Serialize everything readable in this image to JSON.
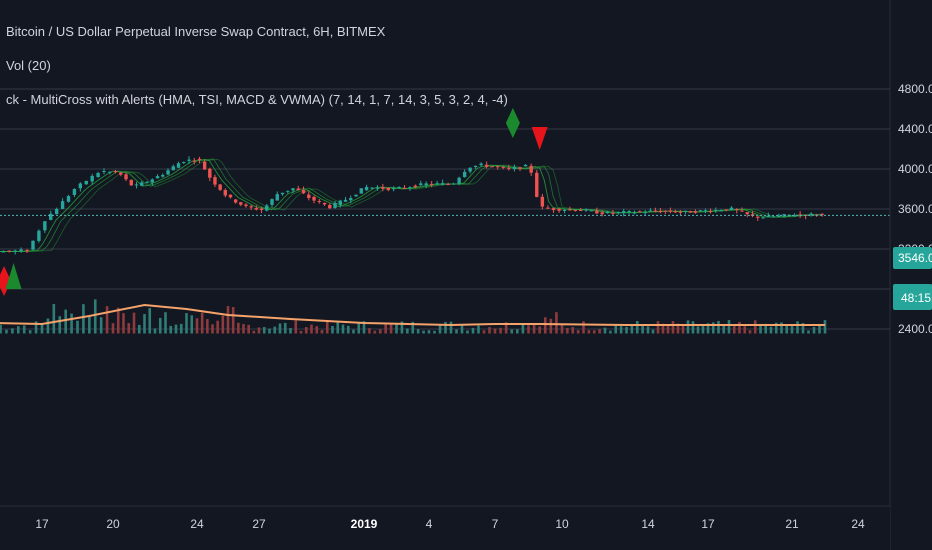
{
  "legend": {
    "title": "Bitcoin / US Dollar Perpetual Inverse Swap Contract, 6H, BITMEX",
    "volume": "Vol (20)",
    "indicator": "ck - MultiCross with Alerts (HMA, TSI, MACD & VWMA) (7, 14, 1, 7, 14, 3, 5, 3, 2, 4, -4)"
  },
  "colors": {
    "background": "#131722",
    "grid": "#363a45",
    "up": "#26a69a",
    "down": "#ef5350",
    "volume_ma": "#f5a36b",
    "price_line": "#53b9b5",
    "signal_green": "#1b8a2e",
    "signal_red": "#e8141c"
  },
  "badges": {
    "last_price": "3546.0",
    "countdown": "48:15"
  },
  "chart_data": {
    "type": "candlestick",
    "interval": "6H",
    "exchange": "BITMEX",
    "y_ticks": [
      "4800.0",
      "4400.0",
      "4000.0",
      "3600.0",
      "3200.0",
      "2800.0",
      "2400.0"
    ],
    "ylim": [
      2320,
      4870
    ],
    "x_ticks": [
      "17",
      "20",
      "24",
      "27",
      "2019",
      "4",
      "7",
      "10",
      "14",
      "17",
      "21",
      "24"
    ],
    "last_price": 3546.0,
    "close_path": [
      {
        "d": 15.5,
        "c": 3175
      },
      {
        "d": 16.5,
        "c": 3185
      },
      {
        "d": 16.8,
        "c": 3300
      },
      {
        "d": 17.2,
        "c": 3480
      },
      {
        "d": 17.8,
        "c": 3620
      },
      {
        "d": 18.5,
        "c": 3800
      },
      {
        "d": 19.1,
        "c": 3900
      },
      {
        "d": 19.6,
        "c": 3980
      },
      {
        "d": 20.4,
        "c": 3960
      },
      {
        "d": 21.1,
        "c": 3820
      },
      {
        "d": 21.8,
        "c": 3880
      },
      {
        "d": 22.5,
        "c": 3950
      },
      {
        "d": 23.4,
        "c": 4080
      },
      {
        "d": 24.2,
        "c": 4100
      },
      {
        "d": 24.8,
        "c": 3900
      },
      {
        "d": 25.6,
        "c": 3720
      },
      {
        "d": 26.5,
        "c": 3620
      },
      {
        "d": 27.3,
        "c": 3590
      },
      {
        "d": 28.0,
        "c": 3750
      },
      {
        "d": 28.8,
        "c": 3810
      },
      {
        "d": 29.6,
        "c": 3700
      },
      {
        "d": 30.5,
        "c": 3620
      },
      {
        "d": 31.4,
        "c": 3710
      },
      {
        "d": 32.2,
        "c": 3820
      },
      {
        "d": 33.5,
        "c": 3800
      },
      {
        "d": 35.0,
        "c": 3850
      },
      {
        "d": 36.2,
        "c": 3850
      },
      {
        "d": 36.9,
        "c": 4020
      },
      {
        "d": 37.5,
        "c": 4040
      },
      {
        "d": 38.8,
        "c": 4000
      },
      {
        "d": 39.6,
        "c": 4030
      },
      {
        "d": 39.8,
        "c": 3950
      },
      {
        "d": 40.1,
        "c": 3620
      },
      {
        "d": 40.6,
        "c": 3600
      },
      {
        "d": 42.0,
        "c": 3590
      },
      {
        "d": 43.0,
        "c": 3560
      },
      {
        "d": 44.5,
        "c": 3570
      },
      {
        "d": 45.5,
        "c": 3580
      },
      {
        "d": 47.0,
        "c": 3570
      },
      {
        "d": 49.3,
        "c": 3600
      },
      {
        "d": 49.8,
        "c": 3560
      },
      {
        "d": 50.3,
        "c": 3520
      },
      {
        "d": 51.0,
        "c": 3520
      },
      {
        "d": 52.0,
        "c": 3540
      },
      {
        "d": 53.5,
        "c": 3546
      }
    ],
    "volume_ma_path": [
      {
        "d": 15.0,
        "v": 2460
      },
      {
        "d": 17.0,
        "v": 2450
      },
      {
        "d": 19.0,
        "v": 2530
      },
      {
        "d": 21.5,
        "v": 2640
      },
      {
        "d": 23.5,
        "v": 2600
      },
      {
        "d": 25.5,
        "v": 2540
      },
      {
        "d": 28.5,
        "v": 2500
      },
      {
        "d": 32.0,
        "v": 2460
      },
      {
        "d": 36.0,
        "v": 2440
      },
      {
        "d": 38.0,
        "v": 2450
      },
      {
        "d": 40.0,
        "v": 2450
      },
      {
        "d": 44.0,
        "v": 2440
      },
      {
        "d": 48.0,
        "v": 2440
      },
      {
        "d": 53.5,
        "v": 2440
      }
    ],
    "signals": [
      {
        "type": "diamond",
        "d": 15.4,
        "price": 2880,
        "color": "red"
      },
      {
        "type": "triangle-up",
        "d": 15.8,
        "price": 2880,
        "color": "green"
      },
      {
        "type": "diamond",
        "d": 38.8,
        "price": 4460,
        "color": "green"
      },
      {
        "type": "triangle-down",
        "d": 40.0,
        "price": 4330,
        "color": "red"
      }
    ]
  }
}
